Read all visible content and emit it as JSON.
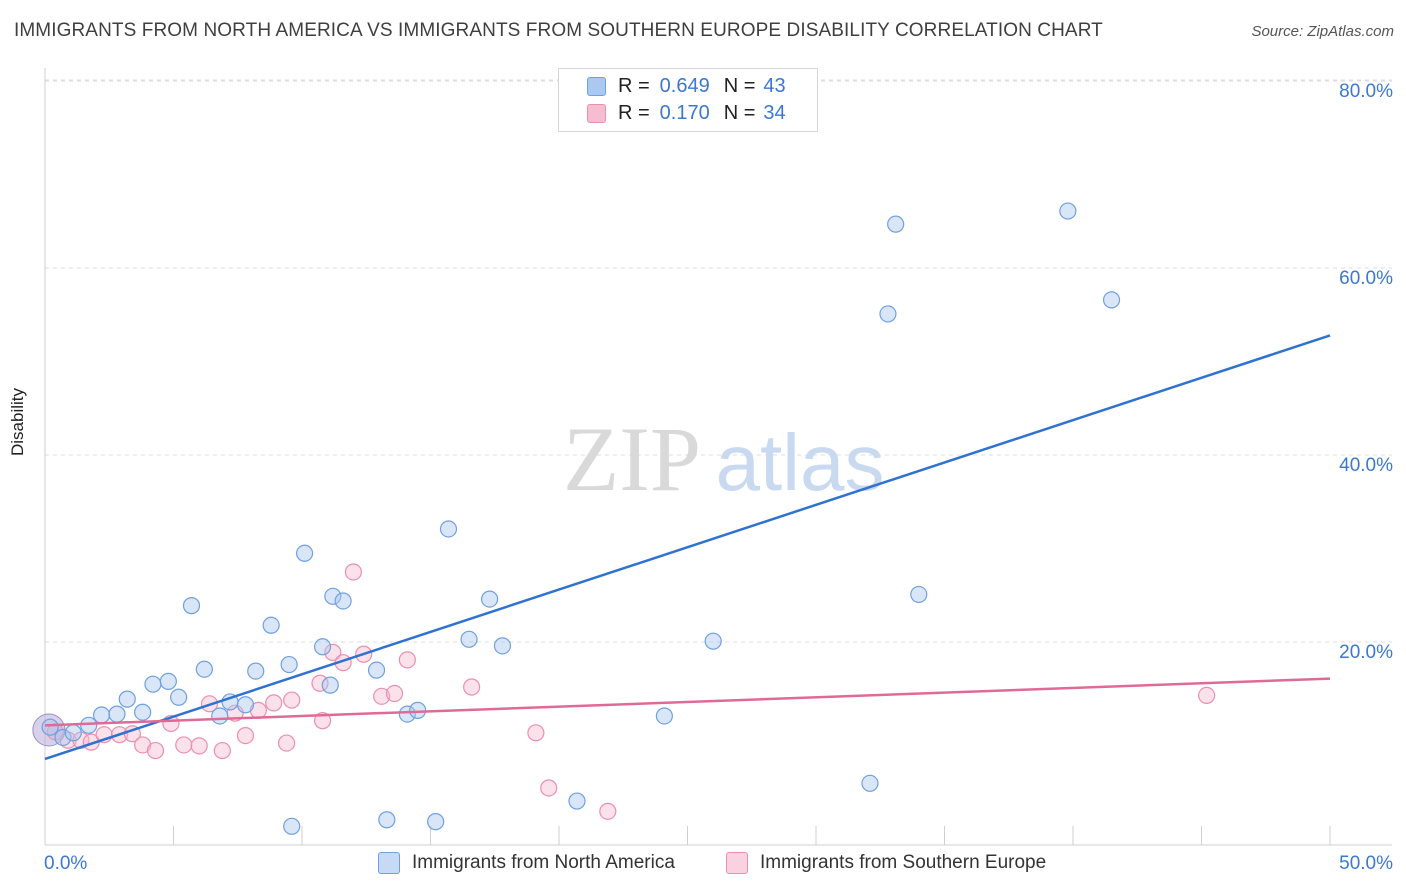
{
  "title": "IMMIGRANTS FROM NORTH AMERICA VS IMMIGRANTS FROM SOUTHERN EUROPE DISABILITY CORRELATION CHART",
  "source": "Source: ZipAtlas.com",
  "watermark": {
    "zip": "ZIP",
    "atlas": "atlas"
  },
  "legend_top": {
    "r_label": "R =",
    "n_label": "N =",
    "series": [
      {
        "r": "0.649",
        "n": "43"
      },
      {
        "r": "0.170",
        "n": "34"
      }
    ]
  },
  "colors": {
    "blue_fill": "#aac8f0",
    "blue_stroke": "#6fa0e0",
    "blue_line": "#2f72d0",
    "pink_fill": "#f6bcd0",
    "pink_stroke": "#eb8fb0",
    "pink_line": "#e06a96",
    "axis_text": "#3b78d0",
    "grid": "#dddddd"
  },
  "chart_data": {
    "type": "scatter",
    "title": "IMMIGRANTS FROM NORTH AMERICA VS IMMIGRANTS FROM SOUTHERN EUROPE DISABILITY CORRELATION CHART",
    "xlabel": "",
    "ylabel": "Disability",
    "xlim": [
      0,
      50
    ],
    "ylim": [
      0,
      80
    ],
    "x_tick_labels": [
      "0.0%",
      "50.0%"
    ],
    "y_ticks": [
      20,
      40,
      60,
      80
    ],
    "y_tick_labels": [
      "20.0%",
      "40.0%",
      "60.0%",
      "80.0%"
    ],
    "grid": true,
    "legend_position": "top-center",
    "series": [
      {
        "name": "Immigrants from North America",
        "color": "blue",
        "R": 0.649,
        "N": 43,
        "trend": {
          "x": [
            0,
            50
          ],
          "y": [
            9.2,
            54.5
          ]
        },
        "points": [
          [
            0.2,
            12.6
          ],
          [
            0.7,
            11.5
          ],
          [
            1.1,
            12.0
          ],
          [
            1.7,
            12.8
          ],
          [
            2.2,
            13.9
          ],
          [
            2.8,
            14.0
          ],
          [
            3.2,
            15.6
          ],
          [
            3.8,
            14.2
          ],
          [
            4.2,
            17.2
          ],
          [
            4.8,
            17.5
          ],
          [
            5.2,
            15.8
          ],
          [
            5.7,
            25.6
          ],
          [
            6.2,
            18.8
          ],
          [
            6.8,
            13.8
          ],
          [
            7.2,
            15.3
          ],
          [
            7.8,
            15.0
          ],
          [
            8.2,
            18.6
          ],
          [
            8.8,
            23.5
          ],
          [
            9.6,
            2.0
          ],
          [
            9.5,
            19.3
          ],
          [
            10.1,
            31.2
          ],
          [
            10.8,
            21.2
          ],
          [
            11.1,
            17.1
          ],
          [
            11.2,
            26.6
          ],
          [
            11.6,
            26.1
          ],
          [
            12.9,
            18.7
          ],
          [
            13.3,
            2.7
          ],
          [
            14.1,
            14.0
          ],
          [
            14.5,
            14.4
          ],
          [
            15.2,
            2.5
          ],
          [
            15.7,
            33.8
          ],
          [
            16.5,
            22.0
          ],
          [
            17.3,
            26.3
          ],
          [
            17.8,
            21.3
          ],
          [
            20.7,
            4.7
          ],
          [
            24.1,
            13.8
          ],
          [
            26.0,
            21.8
          ],
          [
            32.1,
            6.6
          ],
          [
            32.8,
            56.8
          ],
          [
            33.1,
            66.4
          ],
          [
            34.0,
            26.8
          ],
          [
            39.8,
            67.8
          ],
          [
            41.5,
            58.3
          ]
        ]
      },
      {
        "name": "Immigrants from Southern Europe",
        "color": "pink",
        "R": 0.17,
        "N": 34,
        "trend": {
          "x": [
            0,
            50
          ],
          "y": [
            12.8,
            17.8
          ]
        },
        "points": [
          [
            0.4,
            12.1
          ],
          [
            0.9,
            11.2
          ],
          [
            1.4,
            11.2
          ],
          [
            1.8,
            11.0
          ],
          [
            2.3,
            11.8
          ],
          [
            2.9,
            11.8
          ],
          [
            3.4,
            11.9
          ],
          [
            3.8,
            10.7
          ],
          [
            4.3,
            10.1
          ],
          [
            4.9,
            13.0
          ],
          [
            5.4,
            10.7
          ],
          [
            6.0,
            10.6
          ],
          [
            6.4,
            15.1
          ],
          [
            6.9,
            10.1
          ],
          [
            7.4,
            14.1
          ],
          [
            7.8,
            11.7
          ],
          [
            8.3,
            14.4
          ],
          [
            8.9,
            15.2
          ],
          [
            9.4,
            10.9
          ],
          [
            9.6,
            15.5
          ],
          [
            10.7,
            17.3
          ],
          [
            10.8,
            13.3
          ],
          [
            11.2,
            20.6
          ],
          [
            11.6,
            19.5
          ],
          [
            12.0,
            29.2
          ],
          [
            12.4,
            20.4
          ],
          [
            13.1,
            15.9
          ],
          [
            13.6,
            16.2
          ],
          [
            14.1,
            19.8
          ],
          [
            16.6,
            16.9
          ],
          [
            19.1,
            12.0
          ],
          [
            19.6,
            6.1
          ],
          [
            21.9,
            3.6
          ],
          [
            45.2,
            16.0
          ]
        ]
      }
    ]
  },
  "legend_bottom": [
    {
      "label": "Immigrants from North America"
    },
    {
      "label": "Immigrants from Southern Europe"
    }
  ]
}
